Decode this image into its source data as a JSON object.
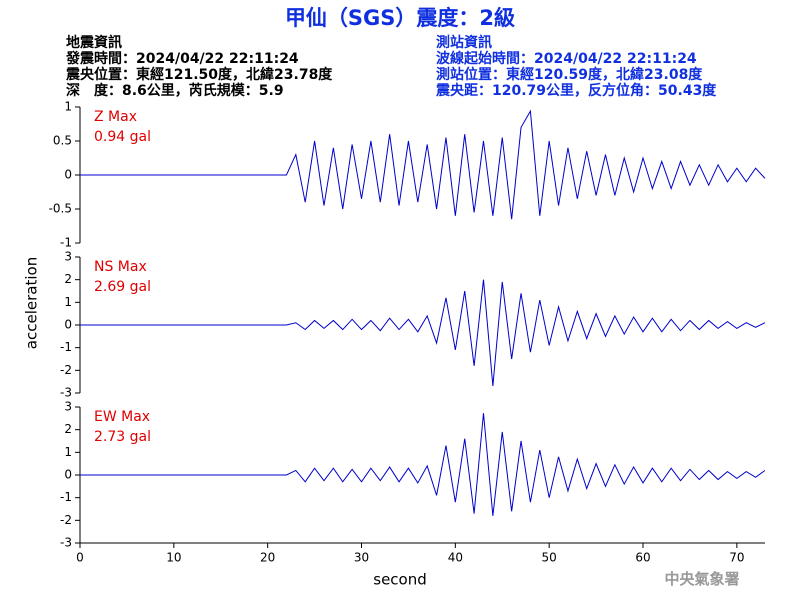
{
  "title": "甲仙（SGS）震度：2級",
  "info_left": [
    "地震資訊",
    "發震時間：2024/04/22 22:11:24",
    "震央位置：東經121.50度，北緯23.78度",
    "深　度：8.6公里，芮氏規模：5.9"
  ],
  "info_right": [
    "測站資訊",
    "波線起始時間：2024/04/22 22:11:24",
    "測站位置：東經120.59度，北緯23.08度",
    "震央距：120.79公里，反方位角：50.43度"
  ],
  "ylabel": "acceleration",
  "xlabel": "second",
  "credit": "中央氣象署",
  "chart_data": [
    {
      "type": "line",
      "name": "Z Max",
      "max_label": "0.94 gal",
      "color": "#0000cc",
      "label_color": "#e00000",
      "x": [
        0,
        1,
        2,
        3,
        4,
        5,
        6,
        7,
        8,
        9,
        10,
        11,
        12,
        13,
        14,
        15,
        16,
        17,
        18,
        19,
        20,
        21,
        22,
        23,
        24,
        25,
        26,
        27,
        28,
        29,
        30,
        31,
        32,
        33,
        34,
        35,
        36,
        37,
        38,
        39,
        40,
        41,
        42,
        43,
        44,
        45,
        46,
        47,
        48,
        49,
        50,
        51,
        52,
        53,
        54,
        55,
        56,
        57,
        58,
        59,
        60,
        61,
        62,
        63,
        64,
        65,
        66,
        67,
        68,
        69,
        70,
        71,
        72,
        73
      ],
      "values": [
        0,
        0,
        0,
        0,
        0,
        0,
        0,
        0,
        0,
        0,
        0,
        0,
        0,
        0,
        0,
        0,
        0,
        0,
        0,
        0,
        0,
        0,
        0,
        0.3,
        -0.4,
        0.5,
        -0.45,
        0.4,
        -0.5,
        0.45,
        -0.35,
        0.5,
        -0.4,
        0.6,
        -0.45,
        0.5,
        -0.4,
        0.45,
        -0.5,
        0.55,
        -0.6,
        0.6,
        -0.55,
        0.5,
        -0.6,
        0.55,
        -0.65,
        0.7,
        0.94,
        -0.6,
        0.5,
        -0.45,
        0.4,
        -0.35,
        0.35,
        -0.3,
        0.3,
        -0.3,
        0.25,
        -0.25,
        0.25,
        -0.2,
        0.2,
        -0.2,
        0.2,
        -0.15,
        0.15,
        -0.15,
        0.15,
        -0.1,
        0.1,
        -0.1,
        0.1,
        -0.05
      ],
      "xlim": [
        0,
        73
      ],
      "ylim": [
        -1,
        1
      ],
      "yticks": [
        -1,
        -0.5,
        0,
        0.5,
        1
      ]
    },
    {
      "type": "line",
      "name": "NS Max",
      "max_label": "2.69 gal",
      "color": "#0000cc",
      "label_color": "#e00000",
      "x": [
        0,
        1,
        2,
        3,
        4,
        5,
        6,
        7,
        8,
        9,
        10,
        11,
        12,
        13,
        14,
        15,
        16,
        17,
        18,
        19,
        20,
        21,
        22,
        23,
        24,
        25,
        26,
        27,
        28,
        29,
        30,
        31,
        32,
        33,
        34,
        35,
        36,
        37,
        38,
        39,
        40,
        41,
        42,
        43,
        44,
        45,
        46,
        47,
        48,
        49,
        50,
        51,
        52,
        53,
        54,
        55,
        56,
        57,
        58,
        59,
        60,
        61,
        62,
        63,
        64,
        65,
        66,
        67,
        68,
        69,
        70,
        71,
        72,
        73
      ],
      "values": [
        0,
        0,
        0,
        0,
        0,
        0,
        0,
        0,
        0,
        0,
        0,
        0,
        0,
        0,
        0,
        0,
        0,
        0,
        0,
        0,
        0,
        0,
        0,
        0.1,
        -0.2,
        0.2,
        -0.15,
        0.2,
        -0.2,
        0.25,
        -0.2,
        0.2,
        -0.25,
        0.3,
        -0.2,
        0.25,
        -0.3,
        0.4,
        -0.8,
        1.2,
        -1.1,
        1.5,
        -1.8,
        2.0,
        -2.69,
        1.9,
        -1.5,
        1.4,
        -1.2,
        1.1,
        -0.9,
        0.8,
        -0.7,
        0.6,
        -0.6,
        0.5,
        -0.5,
        0.4,
        -0.4,
        0.35,
        -0.3,
        0.3,
        -0.3,
        0.25,
        -0.25,
        0.2,
        -0.2,
        0.2,
        -0.15,
        0.15,
        -0.15,
        0.1,
        -0.1,
        0.1
      ],
      "xlim": [
        0,
        73
      ],
      "ylim": [
        -3,
        3
      ],
      "yticks": [
        -3,
        -2,
        -1,
        0,
        1,
        2,
        3
      ]
    },
    {
      "type": "line",
      "name": "EW Max",
      "max_label": "2.73 gal",
      "color": "#0000cc",
      "label_color": "#e00000",
      "x": [
        0,
        1,
        2,
        3,
        4,
        5,
        6,
        7,
        8,
        9,
        10,
        11,
        12,
        13,
        14,
        15,
        16,
        17,
        18,
        19,
        20,
        21,
        22,
        23,
        24,
        25,
        26,
        27,
        28,
        29,
        30,
        31,
        32,
        33,
        34,
        35,
        36,
        37,
        38,
        39,
        40,
        41,
        42,
        43,
        44,
        45,
        46,
        47,
        48,
        49,
        50,
        51,
        52,
        53,
        54,
        55,
        56,
        57,
        58,
        59,
        60,
        61,
        62,
        63,
        64,
        65,
        66,
        67,
        68,
        69,
        70,
        71,
        72,
        73
      ],
      "values": [
        0,
        0,
        0,
        0,
        0,
        0,
        0,
        0,
        0,
        0,
        0,
        0,
        0,
        0,
        0,
        0,
        0,
        0,
        0,
        0,
        0,
        0,
        0,
        0.2,
        -0.3,
        0.3,
        -0.25,
        0.3,
        -0.3,
        0.25,
        -0.3,
        0.3,
        -0.25,
        0.35,
        -0.3,
        0.3,
        -0.35,
        0.4,
        -0.9,
        1.3,
        -1.2,
        1.6,
        -1.7,
        2.73,
        -1.8,
        1.9,
        -1.6,
        1.5,
        -1.2,
        1.1,
        -1.0,
        0.8,
        -0.7,
        0.7,
        -0.6,
        0.5,
        -0.5,
        0.45,
        -0.4,
        0.35,
        -0.35,
        0.3,
        -0.3,
        0.3,
        -0.25,
        0.25,
        -0.2,
        0.2,
        -0.2,
        0.15,
        -0.15,
        0.15,
        -0.1,
        0.2
      ],
      "xlim": [
        0,
        73
      ],
      "ylim": [
        -3,
        3
      ],
      "yticks": [
        -3,
        -2,
        -1,
        0,
        1,
        2,
        3
      ],
      "xticks": [
        0,
        10,
        20,
        30,
        40,
        50,
        60,
        70
      ]
    }
  ]
}
